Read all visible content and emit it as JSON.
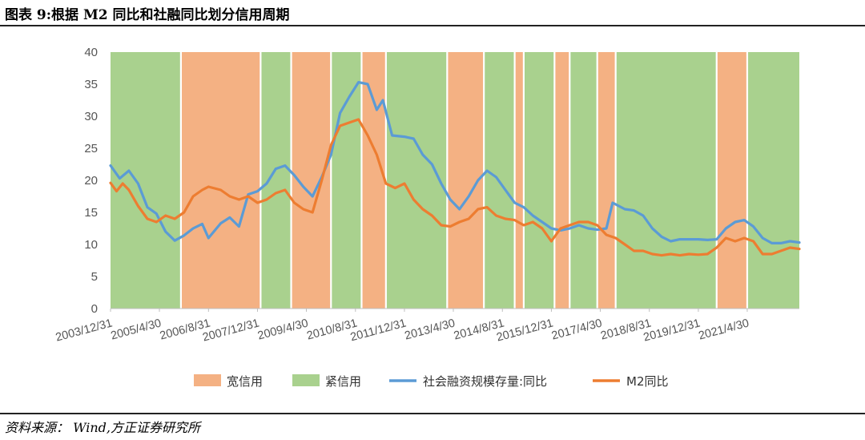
{
  "title": "图表 9:根据 M2 同比和社融同比划分信用周期",
  "source": "资料来源： Wind,方正证券研究所",
  "chart_data": {
    "type": "line",
    "title": "图表 9:根据 M2 同比和社融同比划分信用周期",
    "xlabel": "",
    "ylabel": "",
    "ylim": [
      0,
      40
    ],
    "yticks": [
      0,
      5,
      10,
      15,
      20,
      25,
      30,
      35,
      40
    ],
    "xlim": [
      "2003-12-31",
      "2022-09-30"
    ],
    "x_tick_labels": [
      "2003/12/31",
      "2005/4/30",
      "2006/8/31",
      "2007/12/31",
      "2009/4/30",
      "2010/8/31",
      "2011/12/31",
      "2013/4/30",
      "2014/8/31",
      "2015/12/31",
      "2017/4/30",
      "2018/8/31",
      "2019/12/31",
      "2021/4/30"
    ],
    "colors": {
      "loose": "#F4B183",
      "tight": "#A9D18E",
      "tsf": "#5B9BD5",
      "m2": "#ED7D31"
    },
    "legend": {
      "position": "bottom",
      "entries": [
        "宽信用",
        "紧信用",
        "社会融资规模存量:同比",
        "M2同比"
      ]
    },
    "periods": [
      {
        "type": "tight",
        "start": "2003-12-31",
        "end": "2005-11-30"
      },
      {
        "type": "loose",
        "start": "2005-11-30",
        "end": "2008-01-31"
      },
      {
        "type": "tight",
        "start": "2008-01-31",
        "end": "2008-11-30"
      },
      {
        "type": "loose",
        "start": "2008-11-30",
        "end": "2009-12-31"
      },
      {
        "type": "tight",
        "start": "2009-12-31",
        "end": "2010-10-31"
      },
      {
        "type": "loose",
        "start": "2010-10-31",
        "end": "2011-06-30"
      },
      {
        "type": "tight",
        "start": "2011-06-30",
        "end": "2013-02-28"
      },
      {
        "type": "loose",
        "start": "2013-02-28",
        "end": "2014-02-28"
      },
      {
        "type": "tight",
        "start": "2014-02-28",
        "end": "2014-12-31"
      },
      {
        "type": "loose",
        "start": "2014-12-31",
        "end": "2015-03-31"
      },
      {
        "type": "tight",
        "start": "2015-03-31",
        "end": "2016-01-31"
      },
      {
        "type": "loose",
        "start": "2016-01-31",
        "end": "2016-06-30"
      },
      {
        "type": "tight",
        "start": "2016-06-30",
        "end": "2017-03-31"
      },
      {
        "type": "loose",
        "start": "2017-03-31",
        "end": "2017-09-30"
      },
      {
        "type": "tight",
        "start": "2017-09-30",
        "end": "2020-06-30"
      },
      {
        "type": "loose",
        "start": "2020-06-30",
        "end": "2021-04-30"
      },
      {
        "type": "tight",
        "start": "2021-04-30",
        "end": "2022-09-30"
      }
    ],
    "series": [
      {
        "name": "社会融资规模存量:同比",
        "key": "tsf",
        "points": [
          [
            "2003-12-31",
            22.3
          ],
          [
            "2004-03-31",
            20.3
          ],
          [
            "2004-06-30",
            21.5
          ],
          [
            "2004-09-30",
            19.5
          ],
          [
            "2004-12-31",
            15.8
          ],
          [
            "2005-03-31",
            14.8
          ],
          [
            "2005-06-30",
            12.0
          ],
          [
            "2005-09-30",
            10.6
          ],
          [
            "2005-12-31",
            11.4
          ],
          [
            "2006-03-31",
            12.5
          ],
          [
            "2006-06-30",
            13.2
          ],
          [
            "2006-08-31",
            11.0
          ],
          [
            "2006-12-31",
            13.3
          ],
          [
            "2007-03-31",
            14.2
          ],
          [
            "2007-06-30",
            12.8
          ],
          [
            "2007-09-30",
            17.8
          ],
          [
            "2007-12-31",
            18.3
          ],
          [
            "2008-03-31",
            19.5
          ],
          [
            "2008-06-30",
            21.8
          ],
          [
            "2008-09-30",
            22.3
          ],
          [
            "2008-12-31",
            20.8
          ],
          [
            "2009-03-31",
            19.0
          ],
          [
            "2009-06-30",
            17.5
          ],
          [
            "2009-09-30",
            20.5
          ],
          [
            "2009-12-31",
            24.0
          ],
          [
            "2010-03-31",
            30.5
          ],
          [
            "2010-06-30",
            33.0
          ],
          [
            "2010-09-30",
            35.3
          ],
          [
            "2010-12-31",
            35.0
          ],
          [
            "2011-03-31",
            31.0
          ],
          [
            "2011-05-31",
            32.5
          ],
          [
            "2011-08-31",
            27.0
          ],
          [
            "2011-12-31",
            26.8
          ],
          [
            "2012-03-31",
            26.5
          ],
          [
            "2012-06-30",
            24.0
          ],
          [
            "2012-09-30",
            22.5
          ],
          [
            "2012-12-31",
            19.5
          ],
          [
            "2013-03-31",
            17.0
          ],
          [
            "2013-06-30",
            15.5
          ],
          [
            "2013-09-30",
            17.5
          ],
          [
            "2013-12-31",
            20.0
          ],
          [
            "2014-03-31",
            21.5
          ],
          [
            "2014-06-30",
            20.5
          ],
          [
            "2014-09-30",
            18.5
          ],
          [
            "2014-12-31",
            16.5
          ],
          [
            "2015-03-31",
            15.8
          ],
          [
            "2015-06-30",
            14.5
          ],
          [
            "2015-09-30",
            13.5
          ],
          [
            "2015-12-31",
            12.5
          ],
          [
            "2016-03-31",
            12.2
          ],
          [
            "2016-06-30",
            12.5
          ],
          [
            "2016-09-30",
            13.0
          ],
          [
            "2016-12-31",
            12.5
          ],
          [
            "2017-03-31",
            12.3
          ],
          [
            "2017-06-30",
            12.5
          ],
          [
            "2017-08-31",
            16.5
          ],
          [
            "2017-12-31",
            15.5
          ],
          [
            "2018-03-31",
            15.3
          ],
          [
            "2018-06-30",
            14.5
          ],
          [
            "2018-09-30",
            12.5
          ],
          [
            "2018-12-31",
            11.2
          ],
          [
            "2019-03-31",
            10.5
          ],
          [
            "2019-06-30",
            10.8
          ],
          [
            "2019-09-30",
            10.8
          ],
          [
            "2019-12-31",
            10.8
          ],
          [
            "2020-03-31",
            10.7
          ],
          [
            "2020-06-30",
            10.8
          ],
          [
            "2020-09-30",
            12.5
          ],
          [
            "2020-12-31",
            13.5
          ],
          [
            "2021-03-31",
            13.8
          ],
          [
            "2021-06-30",
            12.8
          ],
          [
            "2021-09-30",
            11.0
          ],
          [
            "2021-12-31",
            10.2
          ],
          [
            "2022-03-31",
            10.2
          ],
          [
            "2022-06-30",
            10.5
          ],
          [
            "2022-09-30",
            10.3
          ]
        ]
      },
      {
        "name": "M2同比",
        "key": "m2",
        "points": [
          [
            "2003-12-31",
            19.6
          ],
          [
            "2004-02-29",
            18.3
          ],
          [
            "2004-04-30",
            19.5
          ],
          [
            "2004-06-30",
            18.5
          ],
          [
            "2004-09-30",
            16.0
          ],
          [
            "2004-12-31",
            14.0
          ],
          [
            "2005-03-31",
            13.5
          ],
          [
            "2005-06-30",
            14.5
          ],
          [
            "2005-09-30",
            14.0
          ],
          [
            "2005-12-31",
            15.0
          ],
          [
            "2006-03-31",
            17.5
          ],
          [
            "2006-06-30",
            18.5
          ],
          [
            "2006-08-31",
            19.0
          ],
          [
            "2006-12-31",
            18.5
          ],
          [
            "2007-03-31",
            17.5
          ],
          [
            "2007-06-30",
            17.0
          ],
          [
            "2007-09-30",
            17.5
          ],
          [
            "2007-12-31",
            16.5
          ],
          [
            "2008-03-31",
            17.0
          ],
          [
            "2008-06-30",
            18.0
          ],
          [
            "2008-09-30",
            18.5
          ],
          [
            "2008-12-31",
            16.5
          ],
          [
            "2009-03-31",
            15.5
          ],
          [
            "2009-06-30",
            15.0
          ],
          [
            "2009-09-30",
            20.0
          ],
          [
            "2009-12-31",
            25.5
          ],
          [
            "2010-03-31",
            28.5
          ],
          [
            "2010-06-30",
            29.0
          ],
          [
            "2010-09-30",
            29.5
          ],
          [
            "2010-12-31",
            27.0
          ],
          [
            "2011-03-31",
            24.0
          ],
          [
            "2011-06-30",
            19.5
          ],
          [
            "2011-09-30",
            18.8
          ],
          [
            "2011-12-31",
            19.5
          ],
          [
            "2012-03-31",
            17.0
          ],
          [
            "2012-06-30",
            15.5
          ],
          [
            "2012-09-30",
            14.5
          ],
          [
            "2012-12-31",
            13.0
          ],
          [
            "2013-03-31",
            12.8
          ],
          [
            "2013-06-30",
            13.5
          ],
          [
            "2013-09-30",
            14.0
          ],
          [
            "2013-12-31",
            15.5
          ],
          [
            "2014-03-31",
            15.8
          ],
          [
            "2014-06-30",
            14.5
          ],
          [
            "2014-09-30",
            14.0
          ],
          [
            "2014-12-31",
            13.8
          ],
          [
            "2015-03-31",
            13.0
          ],
          [
            "2015-06-30",
            13.5
          ],
          [
            "2015-09-30",
            12.5
          ],
          [
            "2015-12-31",
            10.5
          ],
          [
            "2016-03-31",
            12.5
          ],
          [
            "2016-06-30",
            13.0
          ],
          [
            "2016-09-30",
            13.5
          ],
          [
            "2016-12-31",
            13.5
          ],
          [
            "2017-03-31",
            13.0
          ],
          [
            "2017-06-30",
            11.5
          ],
          [
            "2017-09-30",
            11.0
          ],
          [
            "2017-12-31",
            10.0
          ],
          [
            "2018-03-31",
            9.0
          ],
          [
            "2018-06-30",
            9.0
          ],
          [
            "2018-09-30",
            8.5
          ],
          [
            "2018-12-31",
            8.3
          ],
          [
            "2019-03-31",
            8.5
          ],
          [
            "2019-06-30",
            8.3
          ],
          [
            "2019-09-30",
            8.5
          ],
          [
            "2019-12-31",
            8.4
          ],
          [
            "2020-03-31",
            8.5
          ],
          [
            "2020-06-30",
            9.5
          ],
          [
            "2020-09-30",
            11.0
          ],
          [
            "2020-12-31",
            10.5
          ],
          [
            "2021-03-31",
            11.0
          ],
          [
            "2021-06-30",
            10.5
          ],
          [
            "2021-09-30",
            8.5
          ],
          [
            "2021-12-31",
            8.5
          ],
          [
            "2022-03-31",
            9.0
          ],
          [
            "2022-06-30",
            9.5
          ],
          [
            "2022-09-30",
            9.3
          ]
        ]
      }
    ]
  }
}
